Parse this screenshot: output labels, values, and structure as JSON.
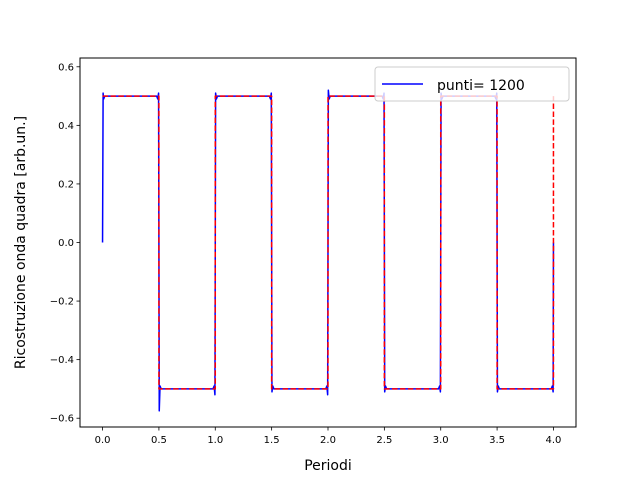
{
  "chart_data": {
    "type": "line",
    "xlabel": "Periodi",
    "ylabel": "Ricostruzione onda quadra [arb.un.]",
    "xlim": [
      -0.2,
      4.2
    ],
    "ylim": [
      -0.63,
      0.63
    ],
    "xticks": [
      0.0,
      0.5,
      1.0,
      1.5,
      2.0,
      2.5,
      3.0,
      3.5,
      4.0
    ],
    "xtick_labels": [
      "0.0",
      "0.5",
      "1.0",
      "1.5",
      "2.0",
      "2.5",
      "3.0",
      "3.5",
      "4.0"
    ],
    "yticks": [
      -0.6,
      -0.4,
      -0.2,
      0.0,
      0.2,
      0.4,
      0.6
    ],
    "ytick_labels": [
      "−0.6",
      "−0.4",
      "−0.2",
      "0.0",
      "0.2",
      "0.4",
      "0.6"
    ],
    "grid": false,
    "legend": {
      "position": "top-right",
      "entries": [
        "punti= 1200"
      ]
    },
    "series": [
      {
        "name": "punti= 1200",
        "color": "#0000ff",
        "style": "solid",
        "x": [
          0.0,
          0.005,
          0.01,
          0.02,
          0.48,
          0.49,
          0.497,
          0.5,
          0.503,
          0.51,
          0.52,
          0.98,
          0.99,
          0.997,
          1.0,
          1.003,
          1.01,
          1.02,
          1.48,
          1.49,
          1.497,
          1.5,
          1.503,
          1.51,
          1.52,
          1.98,
          1.99,
          1.997,
          2.0,
          2.003,
          2.01,
          2.02,
          2.48,
          2.49,
          2.497,
          2.5,
          2.503,
          2.51,
          2.52,
          2.98,
          2.99,
          2.997,
          3.0,
          3.003,
          3.01,
          3.02,
          3.48,
          3.49,
          3.497,
          3.5,
          3.503,
          3.51,
          3.52,
          3.98,
          3.99,
          3.997,
          4.0
        ],
        "y": [
          0.0,
          0.51,
          0.49,
          0.5,
          0.5,
          0.49,
          0.51,
          0.0,
          -0.575,
          -0.49,
          -0.5,
          -0.5,
          -0.49,
          -0.52,
          0.0,
          0.51,
          0.49,
          0.5,
          0.5,
          0.49,
          0.51,
          0.0,
          -0.51,
          -0.49,
          -0.5,
          -0.5,
          -0.49,
          -0.52,
          0.0,
          0.52,
          0.49,
          0.5,
          0.5,
          0.49,
          0.51,
          0.0,
          -0.51,
          -0.49,
          -0.5,
          -0.5,
          -0.49,
          -0.51,
          0.0,
          0.51,
          0.49,
          0.5,
          0.5,
          0.49,
          0.51,
          0.0,
          -0.51,
          -0.49,
          -0.5,
          -0.5,
          -0.49,
          -0.51,
          0.0
        ]
      },
      {
        "name": "",
        "color": "#ff0000",
        "style": "dashed",
        "x": [
          0.0,
          0.5,
          0.5,
          1.0,
          1.0,
          1.5,
          1.5,
          2.0,
          2.0,
          2.5,
          2.5,
          3.0,
          3.0,
          3.5,
          3.5,
          4.0,
          4.0
        ],
        "y": [
          0.5,
          0.5,
          -0.5,
          -0.5,
          0.5,
          0.5,
          -0.5,
          -0.5,
          0.5,
          0.5,
          -0.5,
          -0.5,
          0.5,
          0.5,
          -0.5,
          -0.5,
          0.5
        ]
      }
    ]
  }
}
